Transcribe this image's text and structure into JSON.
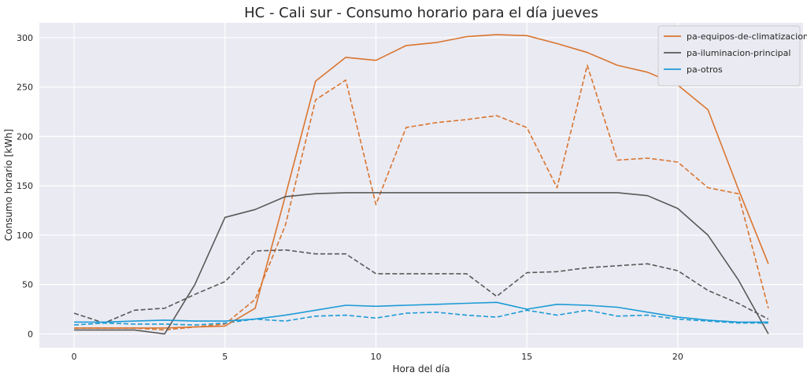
{
  "chart_data": {
    "type": "line",
    "title": "HC - Cali sur - Consumo horario para el día jueves",
    "xlabel": "Hora del día",
    "ylabel": "Consumo horario [kWh]",
    "xlim": [
      -1.15,
      24.15
    ],
    "ylim": [
      -14,
      315
    ],
    "xticks": [
      0,
      5,
      10,
      15,
      20
    ],
    "yticks": [
      0,
      50,
      100,
      150,
      200,
      250,
      300
    ],
    "grid": true,
    "legend_position": "top-right",
    "x": [
      0,
      1,
      2,
      3,
      4,
      5,
      6,
      7,
      8,
      9,
      10,
      11,
      12,
      13,
      14,
      15,
      16,
      17,
      18,
      19,
      20,
      21,
      22,
      23
    ],
    "series": [
      {
        "name": "pa-equipos-de-climatizacion",
        "color": "#d9752f",
        "style": "solid",
        "in_legend": true,
        "values": [
          6,
          6,
          6,
          6,
          7,
          8,
          26,
          140,
          256,
          280,
          277,
          292,
          295,
          301,
          303,
          302,
          294,
          285,
          272,
          265,
          252,
          227,
          147,
          71
        ]
      },
      {
        "name": "pa-iluminacion-principal",
        "color": "#595959",
        "style": "solid",
        "in_legend": true,
        "values": [
          4,
          4,
          4,
          0,
          50,
          118,
          126,
          139,
          142,
          143,
          143,
          143,
          143,
          143,
          143,
          143,
          143,
          143,
          143,
          140,
          127,
          100,
          55,
          0
        ]
      },
      {
        "name": "pa-otros",
        "color": "#1c9bd6",
        "style": "solid",
        "in_legend": true,
        "values": [
          12,
          12,
          13,
          14,
          13,
          13,
          15,
          19,
          24,
          29,
          28,
          29,
          30,
          31,
          32,
          25,
          30,
          29,
          27,
          22,
          17,
          14,
          12,
          12
        ]
      },
      {
        "name": "pa-equipos-de-climatizacion (dashed)",
        "color": "#d9752f",
        "style": "dashed",
        "in_legend": false,
        "values": [
          6,
          6,
          6,
          4,
          7,
          10,
          35,
          110,
          237,
          257,
          131,
          209,
          214,
          217,
          221,
          209,
          148,
          272,
          176,
          178,
          174,
          148,
          142,
          26
        ]
      },
      {
        "name": "pa-iluminacion-principal (dashed)",
        "color": "#595959",
        "style": "dashed",
        "in_legend": false,
        "values": [
          21,
          11,
          24,
          26,
          40,
          53,
          84,
          85,
          81,
          81,
          61,
          61,
          61,
          61,
          38,
          62,
          63,
          67,
          69,
          71,
          64,
          44,
          31,
          15
        ]
      },
      {
        "name": "pa-otros (dashed)",
        "color": "#1c9bd6",
        "style": "dashed",
        "in_legend": false,
        "values": [
          9,
          11,
          10,
          10,
          9,
          11,
          15,
          13,
          18,
          19,
          16,
          21,
          22,
          19,
          17,
          24,
          19,
          24,
          18,
          19,
          15,
          13,
          11,
          11
        ]
      }
    ]
  }
}
